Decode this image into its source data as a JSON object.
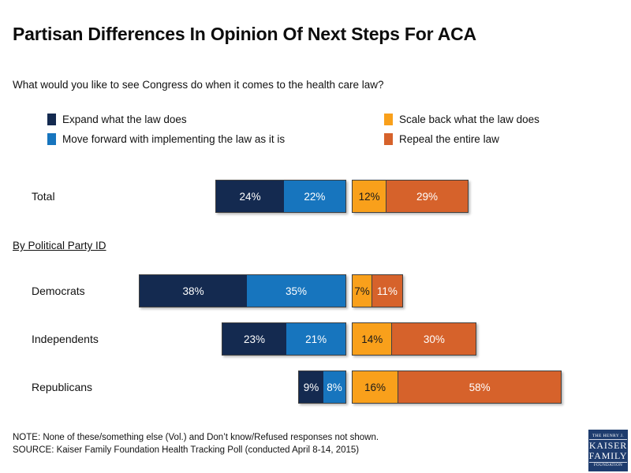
{
  "page": {
    "title": "Partisan Differences In Opinion Of Next Steps For ACA",
    "subtitle": "What would you like to see Congress do when it comes to the health care law?"
  },
  "section_heading": "By Political Party ID",
  "chart_data": {
    "type": "bar",
    "orientation": "horizontal",
    "stacked": true,
    "diverging_gap_after_series": 2,
    "unit": "%",
    "value_labels": "inside",
    "legend_position": "top-two-columns",
    "categories": [
      "Total",
      "Democrats",
      "Independents",
      "Republicans"
    ],
    "series": [
      {
        "key": "expand",
        "name": "Expand what the law does",
        "color": "#142a50",
        "label_color": "#ffffff",
        "values": [
          24,
          38,
          23,
          9
        ]
      },
      {
        "key": "move_forward",
        "name": "Move forward with implementing the law as it is",
        "color": "#1775be",
        "label_color": "#ffffff",
        "values": [
          22,
          35,
          21,
          8
        ]
      },
      {
        "key": "scale_back",
        "name": "Scale back what the law does",
        "color": "#f9a01b",
        "label_color": "#1a1a1a",
        "values": [
          12,
          7,
          14,
          16
        ]
      },
      {
        "key": "repeal",
        "name": "Repeal the entire law",
        "color": "#d6622b",
        "label_color": "#ffffff",
        "values": [
          29,
          11,
          30,
          58
        ]
      }
    ]
  },
  "footer": {
    "note": "NOTE: None of these/something else (Vol.) and Don’t know/Refused responses not shown.",
    "source": "SOURCE: Kaiser Family Foundation Health Tracking Poll (conducted April 8-14, 2015)"
  },
  "logo": {
    "line1": "THE HENRY J.",
    "line2": "KAISER",
    "line3": "FAMILY",
    "line4": "FOUNDATION"
  }
}
